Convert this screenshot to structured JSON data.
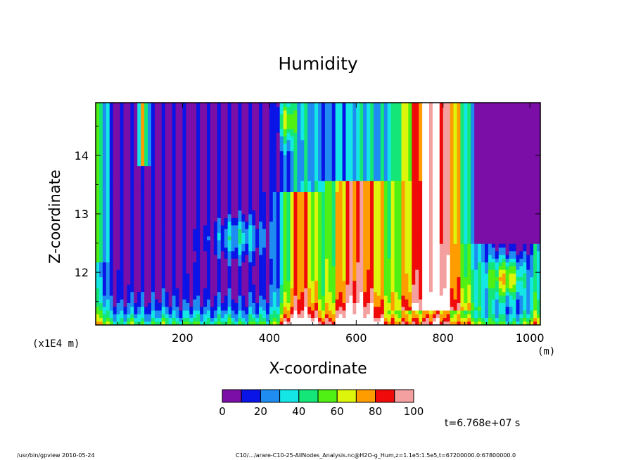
{
  "chart_data": {
    "type": "heatmap",
    "title": "Humidity",
    "xlabel": "X-coordinate",
    "ylabel": "Z-coordinate",
    "x_unit": "(m)",
    "y_unit": "(x1E4 m)",
    "xlim": [
      0,
      1024
    ],
    "ylim": [
      11.1,
      14.9
    ],
    "x_ticks": [
      "200",
      "400",
      "600",
      "800",
      "1000"
    ],
    "y_ticks": [
      "12",
      "13",
      "14"
    ],
    "colorbar": {
      "levels": [
        0,
        10,
        20,
        30,
        40,
        50,
        60,
        70,
        80,
        90,
        100
      ],
      "tick_labels": [
        "0",
        "20",
        "40",
        "60",
        "80",
        "100"
      ],
      "colors": [
        "#7a0ea6",
        "#0a14e6",
        "#1e8cf0",
        "#14e6e6",
        "#14e678",
        "#50f014",
        "#dcf50a",
        "#ff9c00",
        "#f00a0a",
        "#f5a0a0"
      ]
    },
    "regions_approx": [
      {
        "x_range": [
          0,
          400
        ],
        "z_range": [
          12.0,
          14.9
        ],
        "humidity": "0-10"
      },
      {
        "x_range": [
          0,
          460
        ],
        "z_range": [
          11.1,
          11.7
        ],
        "humidity": "30-60"
      },
      {
        "x_range": [
          520,
          700
        ],
        "z_range": [
          11.1,
          13.0
        ],
        "humidity": "70-100"
      },
      {
        "x_range": [
          680,
          880
        ],
        "z_range": [
          11.4,
          14.9
        ],
        "humidity": "90-100"
      },
      {
        "x_range": [
          880,
          1024
        ],
        "z_range": [
          12.5,
          14.9
        ],
        "humidity": "0-10"
      },
      {
        "x_range": [
          900,
          1000
        ],
        "z_range": [
          11.5,
          12.3
        ],
        "humidity": "60-90"
      }
    ]
  },
  "time_label": "t=6.768e+07 s",
  "footer_left": "/usr/bin/gpview   2010-05-24",
  "footer_right": "C10/.../arare-C10-25-AllNodes_Analysis.nc@H2O-g_Hum,z=1.1e5:1.5e5,t=67200000.0:67800000.0"
}
